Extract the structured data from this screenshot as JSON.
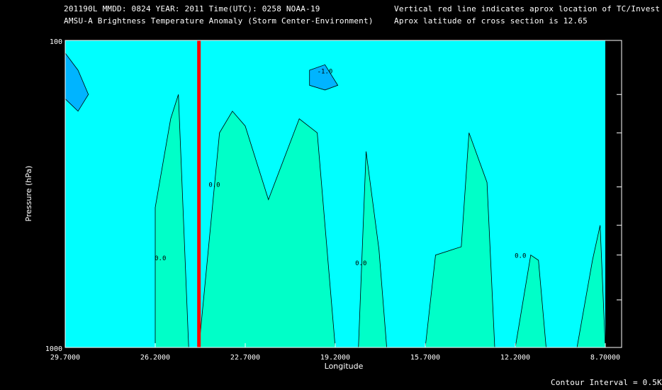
{
  "header": {
    "line1_left": "201190L  MMDD: 0824 YEAR: 2011 Time(UTC): 0258 NOAA-19",
    "line2_left": "AMSU-A Brightness Temperature Anomaly (Storm Center-Environment)",
    "line1_right": "Vertical red line indicates aprox location of TC/Invest",
    "line2_right": "Aprox latitude of cross section is 12.65"
  },
  "footer": {
    "contour_interval": "Contour Interval = 0.5K"
  },
  "colors": {
    "background": "#000000",
    "level_0": "#00ffff",
    "level_pos": "#00ffc8",
    "level_pos2": "#00f596",
    "level_neg": "#00b4ff",
    "marker": "#ff0000"
  },
  "chart_data": {
    "type": "heatmap",
    "title": "AMSU-A Brightness Temperature Anomaly (Storm Center-Environment)",
    "xlabel": "Longitude",
    "ylabel": "Pressure (hPa)",
    "x_ticks": [
      "29.7000",
      "26.2000",
      "22.7000",
      "19.2000",
      "15.7000",
      "12.2000",
      "8.70000"
    ],
    "x_tick_values": [
      29.7,
      26.2,
      22.7,
      19.2,
      15.7,
      12.2,
      8.7
    ],
    "y_ticks": [
      "100",
      "1000"
    ],
    "xlim": [
      29.7,
      8.7
    ],
    "ylim": [
      1000,
      100
    ],
    "y_scale": "log",
    "contour_labels": [
      "0.0",
      "-1.0"
    ],
    "contour_interval": 0.5,
    "marker_longitude": 24.5,
    "marker_label": "Vertical red line indicates aprox location of TC/Invest",
    "cross_section_latitude": 12.65,
    "positive_regions": [
      [
        [
          26.2,
          1000
        ],
        [
          26.2,
          350
        ],
        [
          25.6,
          180
        ],
        [
          25.3,
          150
        ],
        [
          24.9,
          1000
        ]
      ],
      [
        [
          24.5,
          1000
        ],
        [
          23.7,
          200
        ],
        [
          23.2,
          170
        ],
        [
          22.7,
          190
        ],
        [
          21.8,
          330
        ],
        [
          20.6,
          180
        ],
        [
          19.9,
          200
        ],
        [
          19.2,
          1000
        ]
      ],
      [
        [
          18.3,
          1000
        ],
        [
          18.0,
          230
        ],
        [
          17.5,
          480
        ],
        [
          17.2,
          1000
        ]
      ],
      [
        [
          15.7,
          1000
        ],
        [
          15.3,
          500
        ],
        [
          14.3,
          470
        ],
        [
          14.0,
          200
        ],
        [
          13.3,
          290
        ],
        [
          13.0,
          1000
        ]
      ],
      [
        [
          12.2,
          1000
        ],
        [
          11.6,
          500
        ],
        [
          11.3,
          520
        ],
        [
          11.0,
          1000
        ]
      ],
      [
        [
          9.8,
          1000
        ],
        [
          9.2,
          520
        ],
        [
          8.9,
          400
        ],
        [
          8.7,
          1000
        ]
      ]
    ],
    "negative_regions": [
      [
        [
          29.7,
          110
        ],
        [
          29.2,
          125
        ],
        [
          28.8,
          150
        ],
        [
          29.2,
          170
        ],
        [
          29.7,
          155
        ]
      ],
      [
        [
          20.2,
          125
        ],
        [
          19.6,
          120
        ],
        [
          19.1,
          140
        ],
        [
          19.6,
          145
        ],
        [
          20.2,
          140
        ]
      ]
    ]
  }
}
